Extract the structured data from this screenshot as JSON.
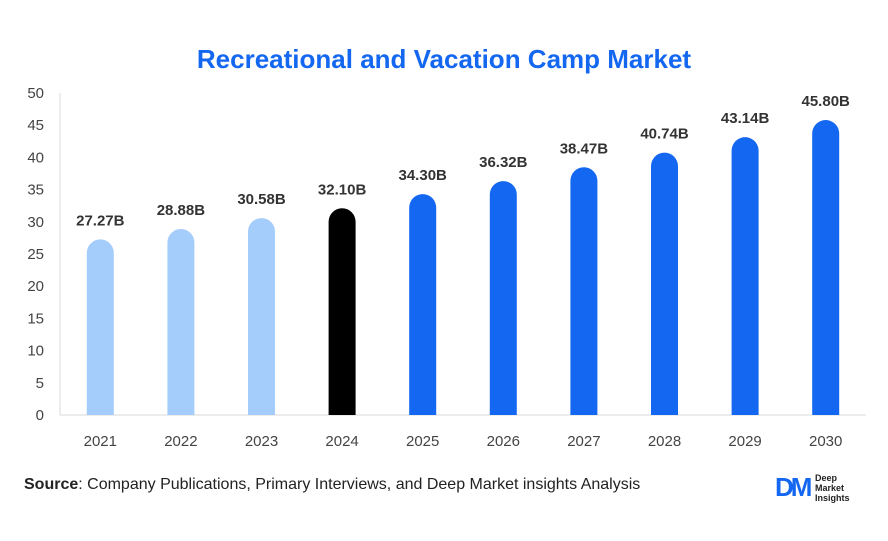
{
  "chart_data": {
    "type": "bar",
    "title": "Recreational and Vacation Camp Market",
    "categories": [
      "2021",
      "2022",
      "2023",
      "2024",
      "2025",
      "2026",
      "2027",
      "2028",
      "2029",
      "2030"
    ],
    "values": [
      27.27,
      28.88,
      30.58,
      32.1,
      34.3,
      36.32,
      38.47,
      40.74,
      43.14,
      45.8
    ],
    "data_labels": [
      "27.27B",
      "28.88B",
      "30.58B",
      "32.10B",
      "34.30B",
      "36.32B",
      "38.47B",
      "40.74B",
      "43.14B",
      "45.80B"
    ],
    "bar_colors": [
      "#a4cdfb",
      "#a4cdfb",
      "#a4cdfb",
      "#000000",
      "#1467f0",
      "#1467f0",
      "#1467f0",
      "#1467f0",
      "#1467f0",
      "#1467f0"
    ],
    "ylim": [
      0,
      50
    ],
    "yticks": [
      0,
      5,
      10,
      15,
      20,
      25,
      30,
      35,
      40,
      45,
      50
    ],
    "xlabel": "",
    "ylabel": "",
    "grid": false
  },
  "footer": {
    "source_label": "Source",
    "source_text": ": Company Publications, Primary Interviews, and Deep Market insights Analysis"
  },
  "logo": {
    "mark": "DM",
    "line1": "Deep",
    "line2": "Market",
    "line3": "Insights"
  }
}
